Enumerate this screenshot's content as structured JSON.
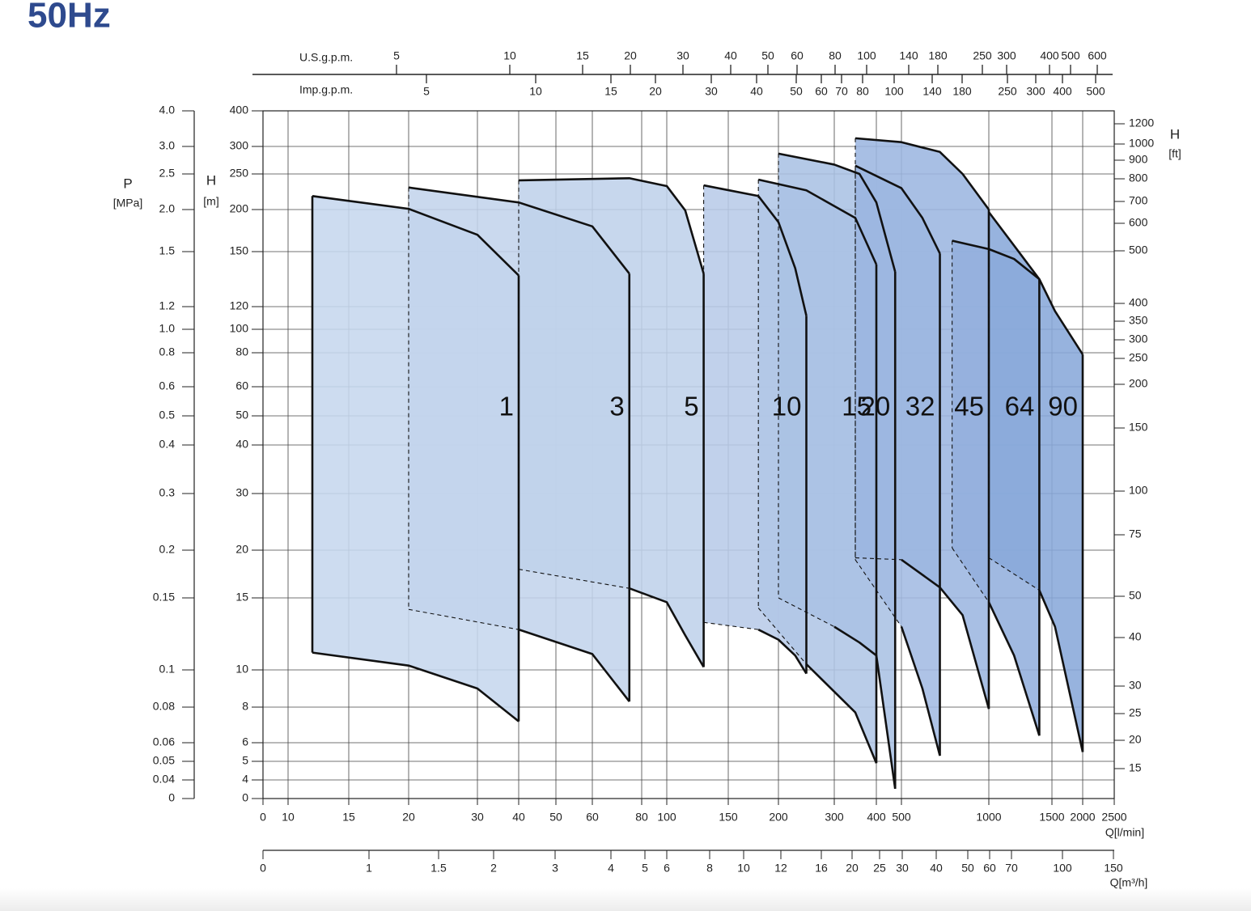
{
  "chart_data": {
    "type": "area",
    "title": "50Hz",
    "x_label": "Q[l/min]",
    "xlim": [
      0,
      2500
    ],
    "xticks": [
      0,
      10,
      15,
      20,
      30,
      40,
      50,
      60,
      80,
      100,
      150,
      200,
      300,
      400,
      500,
      1000,
      1500,
      2000,
      2500
    ],
    "y_label": "H",
    "y_unit": "[m]",
    "ylim": [
      0,
      400
    ],
    "yticks": [
      0,
      4,
      5,
      6,
      8,
      10,
      15,
      20,
      30,
      40,
      50,
      60,
      80,
      100,
      120,
      150,
      200,
      250,
      300,
      400
    ],
    "p_axis": {
      "label": "P",
      "unit": "[MPa]",
      "ticks": [
        0,
        0.04,
        0.05,
        0.06,
        0.08,
        0.1,
        0.15,
        0.2,
        0.3,
        0.4,
        0.5,
        0.6,
        0.8,
        {
          "value": 1,
          "label": "1.0"
        },
        1.2,
        1.5,
        {
          "value": 2,
          "label": "2.0"
        },
        2.5,
        {
          "value": 3,
          "label": "3.0"
        },
        {
          "value": 4,
          "label": "4.0"
        }
      ]
    },
    "y2_label": "H",
    "y2_unit": "[ft]",
    "y2ticks": [
      15,
      20,
      25,
      30,
      40,
      50,
      75,
      100,
      150,
      200,
      250,
      300,
      350,
      400,
      500,
      600,
      700,
      800,
      900,
      1000,
      1200
    ],
    "top_axes": [
      {
        "label": "U.S.g.p.m.",
        "ticks": [
          5,
          10,
          15,
          20,
          30,
          40,
          50,
          60,
          80,
          100,
          140,
          180,
          250,
          300,
          400,
          500,
          600
        ]
      },
      {
        "label": "Imp.g.p.m.",
        "ticks": [
          5,
          10,
          15,
          20,
          30,
          40,
          50,
          60,
          70,
          80,
          100,
          140,
          180,
          250,
          300,
          400,
          500
        ]
      }
    ],
    "bottom_axis": {
      "label": "Q[m³/h]",
      "ticks": [
        0,
        1,
        1.5,
        2,
        3,
        4,
        5,
        6,
        8,
        10,
        12,
        16,
        20,
        25,
        30,
        40,
        50,
        60,
        70,
        100,
        150
      ]
    },
    "grid": true,
    "series": [
      {
        "name": "1",
        "color": "#c6d7ee",
        "x": [
          12,
          20,
          30,
          40
        ],
        "values": [
          219,
          201,
          170,
          137
        ],
        "values_min": [
          11.2,
          10.3,
          9,
          7.2
        ]
      },
      {
        "name": "3",
        "color": "#c3d4ec",
        "x": [
          20,
          40,
          60,
          75
        ],
        "values": [
          231,
          210,
          180,
          138
        ],
        "values_min": [
          14.2,
          12.8,
          11.1,
          8.3
        ]
      },
      {
        "name": "5",
        "color": "#bfd1eb",
        "x": [
          40,
          75,
          100,
          115,
          130
        ],
        "values": [
          241,
          244,
          233,
          199,
          138
        ],
        "values_min": [
          18,
          16,
          14.7,
          12.4,
          10.2
        ]
      },
      {
        "name": "10",
        "color": "#b8cbe8",
        "x": [
          130,
          180,
          200,
          230,
          250
        ],
        "values": [
          234,
          219,
          185,
          141,
          112
        ],
        "values_min": [
          13.3,
          12.8,
          12.1,
          11,
          9.8
        ]
      },
      {
        "name": "15",
        "color": "#b0c6e6",
        "x": [
          180,
          250,
          350,
          400
        ],
        "values": [
          242,
          227,
          190,
          143
        ],
        "values_min": [
          14.3,
          10.4,
          7.7,
          4.9
        ]
      },
      {
        "name": "20",
        "color": "#aac1e4",
        "x": [
          200,
          300,
          360,
          400,
          475
        ],
        "values": [
          287,
          267,
          250,
          210,
          139
        ],
        "values_min": [
          15,
          13,
          11.9,
          11,
          2.1
        ]
      },
      {
        "name": "32",
        "color": "#a3bbe2",
        "x": [
          350,
          500,
          620,
          720
        ],
        "values": [
          265,
          230,
          190,
          149
        ],
        "values_min": [
          19,
          13,
          9,
          5.3
        ]
      },
      {
        "name": "45",
        "color": "#9cb6e0",
        "x": [
          350,
          500,
          720,
          850,
          1000
        ],
        "values": [
          323,
          312,
          290,
          250,
          200
        ],
        "values_min": [
          19.2,
          19,
          16.1,
          13.8,
          7.9
        ]
      },
      {
        "name": "64",
        "color": "#93afdd",
        "x": [
          790,
          1000,
          1200,
          1400
        ],
        "values": [
          163,
          153,
          146,
          135
        ],
        "values_min": [
          20.4,
          14.7,
          11,
          6.4
        ]
      },
      {
        "name": "90",
        "color": "#89a8da",
        "x": [
          1000,
          1400,
          1550,
          2000
        ],
        "values": [
          197,
          135,
          116,
          79
        ],
        "values_min": [
          19.2,
          15.8,
          13,
          5.5
        ]
      }
    ]
  }
}
